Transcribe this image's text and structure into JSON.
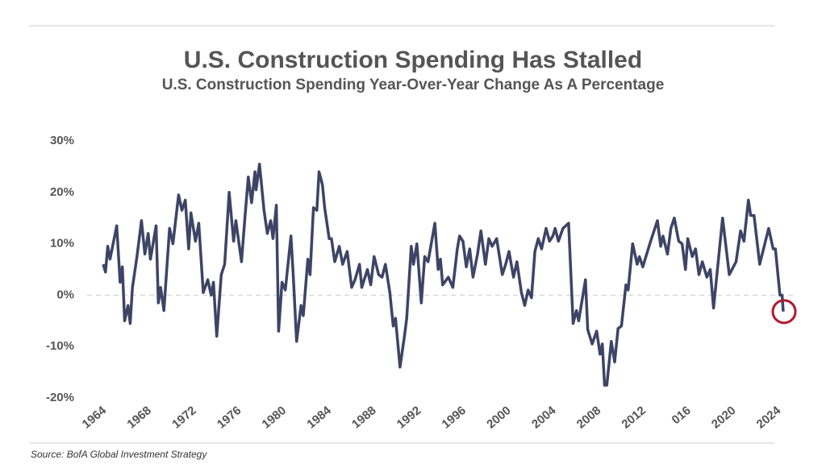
{
  "chart_data": {
    "type": "line",
    "title": "U.S. Construction Spending Has Stalled",
    "subtitle": "U.S. Construction Spending Year-Over-Year Change As A Percentage",
    "source": "Source: BofA Global Investment Strategy",
    "color": "#3d4466",
    "highlight_color": "#b3182b",
    "zero_line": true,
    "x": [
      1964.0,
      1964.2,
      1964.4,
      1964.6,
      1965.2,
      1965.5,
      1965.7,
      1965.9,
      1966.2,
      1966.4,
      1966.6,
      1967.0,
      1967.4,
      1967.7,
      1968.0,
      1968.2,
      1968.7,
      1968.9,
      1969.1,
      1969.4,
      1969.9,
      1970.2,
      1970.7,
      1971.0,
      1971.3,
      1971.6,
      1971.8,
      1972.2,
      1972.5,
      1972.9,
      1973.3,
      1973.6,
      1973.8,
      1974.1,
      1974.5,
      1974.8,
      1975.2,
      1975.6,
      1975.8,
      1976.3,
      1976.6,
      1976.9,
      1977.2,
      1977.5,
      1977.6,
      1977.9,
      1978.3,
      1978.6,
      1978.9,
      1979.1,
      1979.4,
      1979.6,
      1979.9,
      1980.2,
      1980.7,
      1980.9,
      1981.2,
      1981.6,
      1981.8,
      1982.2,
      1982.4,
      1982.7,
      1983.0,
      1983.2,
      1983.5,
      1983.7,
      1984.1,
      1984.3,
      1984.6,
      1985.0,
      1985.3,
      1985.7,
      1986.1,
      1986.4,
      1986.8,
      1987.0,
      1987.5,
      1987.8,
      1988.1,
      1988.5,
      1988.8,
      1989.1,
      1989.5,
      1989.8,
      1990.0,
      1990.4,
      1990.8,
      1991.0,
      1991.4,
      1991.6,
      1991.9,
      1992.3,
      1992.6,
      1992.9,
      1993.5,
      1993.8,
      1994.0,
      1994.2,
      1994.7,
      1995.1,
      1995.5,
      1995.7,
      1996.0,
      1996.3,
      1996.6,
      1996.9,
      1997.3,
      1997.6,
      1998.0,
      1998.3,
      1998.6,
      1999.0,
      1999.5,
      1999.8,
      2000.1,
      2000.5,
      2000.8,
      2001.2,
      2001.5,
      2001.8,
      2002.1,
      2002.4,
      2002.7,
      2003.0,
      2003.4,
      2003.7,
      2004.0,
      2004.2,
      2004.5,
      2004.9,
      2005.4,
      2005.8,
      2006.1,
      2006.3,
      2006.9,
      2007.1,
      2007.5,
      2007.9,
      2008.2,
      2008.4,
      2008.6,
      2008.8,
      2009.2,
      2009.5,
      2009.8,
      2010.1,
      2010.5,
      2010.7,
      2011.1,
      2011.5,
      2011.7,
      2012.0,
      2012.7,
      2013.3,
      2013.6,
      2013.8,
      2014.2,
      2014.5,
      2014.8,
      2015.2,
      2015.5,
      2015.8,
      2016.0,
      2016.4,
      2016.7,
      2017.0,
      2017.3,
      2017.7,
      2018.0,
      2018.3,
      2019.1,
      2019.7,
      2020.3,
      2020.7,
      2021.0,
      2021.4,
      2021.6,
      2021.9,
      2022.4,
      2023.2,
      2023.6,
      2023.8,
      2024.2,
      2024.4,
      2024.5
    ],
    "values": [
      6,
      4.5,
      9.5,
      7,
      13.5,
      2.5,
      5.5,
      -5,
      -2,
      -5.5,
      1.5,
      7.5,
      14.5,
      8,
      12,
      7,
      13.5,
      -1.5,
      1.5,
      -3,
      13,
      10,
      19.5,
      16.5,
      18.5,
      9,
      16,
      10.5,
      14,
      0.5,
      3,
      0,
      2.5,
      -8,
      4,
      6,
      20,
      10.5,
      14.5,
      6.5,
      15,
      23,
      18,
      24,
      20.5,
      25.5,
      16.5,
      12,
      14.5,
      11,
      17.5,
      -7,
      2.5,
      1,
      11.5,
      4,
      -9,
      -2,
      -4,
      7,
      4,
      17,
      16.5,
      24,
      21.5,
      17,
      11,
      11,
      6.5,
      9.5,
      6,
      8.5,
      1.5,
      3,
      6,
      1.5,
      5,
      2,
      7.5,
      4,
      3.5,
      6,
      0.5,
      -6,
      -4.5,
      -14,
      -8,
      -4.5,
      9.5,
      6,
      10,
      -1.5,
      7.5,
      6.5,
      14,
      5,
      7,
      2,
      3.5,
      1.5,
      9,
      11.5,
      10.5,
      5.5,
      9,
      3.5,
      8,
      12.5,
      6,
      11,
      9.5,
      11,
      4,
      6,
      8.5,
      3.5,
      6.5,
      0.5,
      -2,
      1,
      -0.5,
      8.5,
      11,
      9,
      13,
      10.5,
      11.5,
      13,
      10.5,
      13,
      14,
      -5.5,
      -3,
      -5,
      3,
      -6.7,
      -9.5,
      -7,
      -11.5,
      -9.5,
      -17.5,
      -17.5,
      -9,
      -13,
      -6.5,
      -6,
      2,
      1,
      10,
      6,
      7.5,
      5.5,
      10.5,
      14.5,
      9.5,
      11.5,
      8,
      13,
      15,
      10.5,
      10,
      5,
      11,
      7.5,
      9,
      4,
      6.5,
      3.5,
      5,
      -2.5,
      15,
      4,
      6.5,
      12.5,
      10.5,
      18.5,
      15.5,
      15.5,
      6,
      13,
      9,
      9,
      0,
      0,
      -3.2
    ],
    "xlim": [
      1964,
      2025
    ],
    "xticks": [
      1964,
      1968,
      1972,
      1976,
      1980,
      1984,
      1988,
      1992,
      1996,
      2000,
      2004,
      2008,
      2012,
      {
        "value": 2016,
        "label": "016"
      },
      2020,
      2024
    ],
    "ylim": [
      -20,
      30
    ],
    "yticks": [
      {
        "value": 30,
        "label": "30%"
      },
      {
        "value": 20,
        "label": "20%"
      },
      {
        "value": 10,
        "label": "10%"
      },
      {
        "value": 0,
        "label": "0%"
      },
      {
        "value": -10,
        "label": "-10%"
      },
      {
        "value": -20,
        "label": "-20%"
      }
    ]
  }
}
